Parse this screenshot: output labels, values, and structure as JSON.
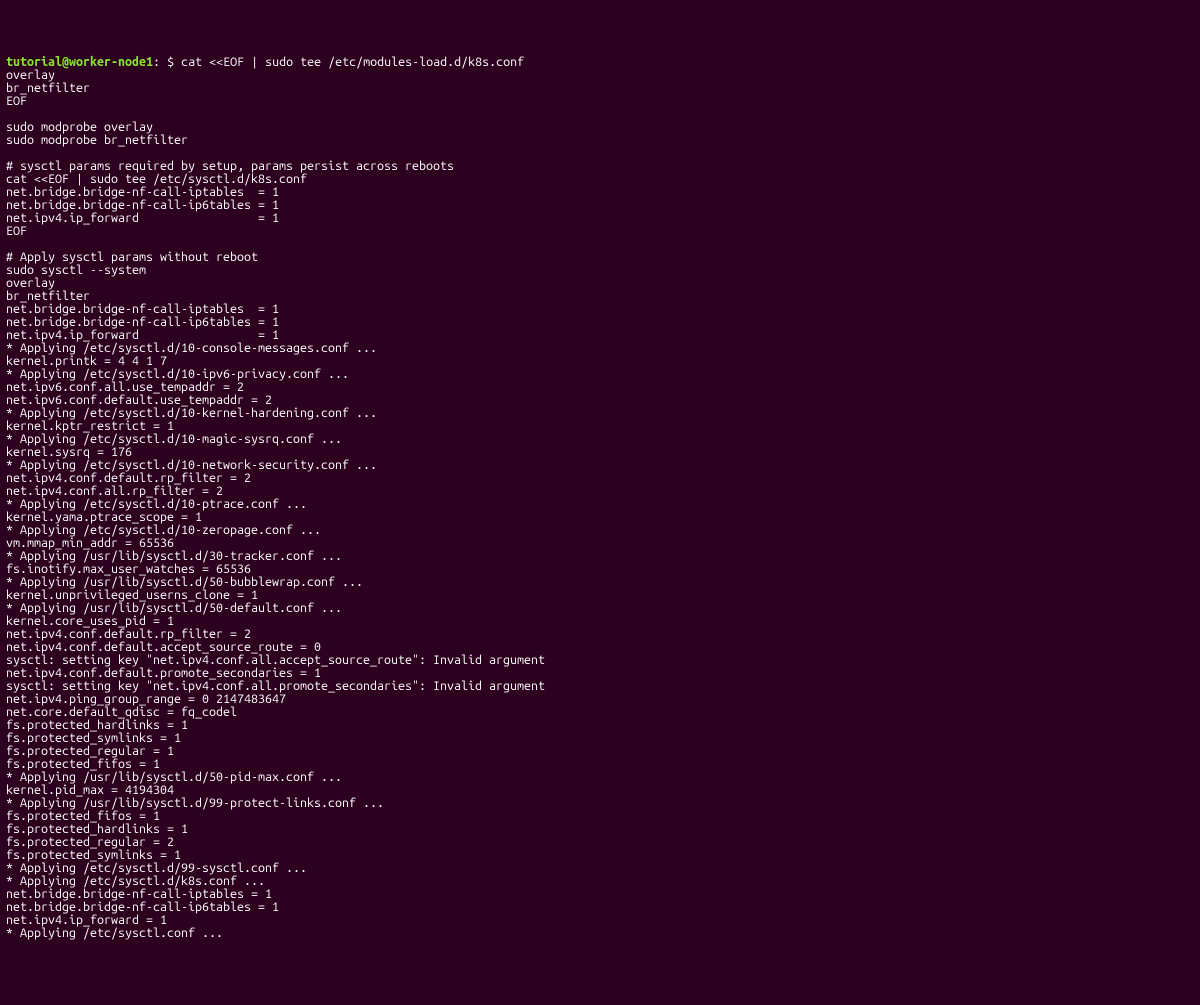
{
  "colors": {
    "background": "#2c001e",
    "text": "#ffffff",
    "prompt_user_host": "#8ae234"
  },
  "prompt": {
    "user": "tutorial",
    "at": "@",
    "host": "worker-node1",
    "colon": ":",
    "path": " ",
    "dollar": "$ "
  },
  "command": "cat <<EOF | sudo tee /etc/modules-load.d/k8s.conf",
  "lines": [
    "overlay",
    "br_netfilter",
    "EOF",
    "",
    "sudo modprobe overlay",
    "sudo modprobe br_netfilter",
    "",
    "# sysctl params required by setup, params persist across reboots",
    "cat <<EOF | sudo tee /etc/sysctl.d/k8s.conf",
    "net.bridge.bridge-nf-call-iptables  = 1",
    "net.bridge.bridge-nf-call-ip6tables = 1",
    "net.ipv4.ip_forward                 = 1",
    "EOF",
    "",
    "# Apply sysctl params without reboot",
    "sudo sysctl --system",
    "overlay",
    "br_netfilter",
    "net.bridge.bridge-nf-call-iptables  = 1",
    "net.bridge.bridge-nf-call-ip6tables = 1",
    "net.ipv4.ip_forward                 = 1",
    "* Applying /etc/sysctl.d/10-console-messages.conf ...",
    "kernel.printk = 4 4 1 7",
    "* Applying /etc/sysctl.d/10-ipv6-privacy.conf ...",
    "net.ipv6.conf.all.use_tempaddr = 2",
    "net.ipv6.conf.default.use_tempaddr = 2",
    "* Applying /etc/sysctl.d/10-kernel-hardening.conf ...",
    "kernel.kptr_restrict = 1",
    "* Applying /etc/sysctl.d/10-magic-sysrq.conf ...",
    "kernel.sysrq = 176",
    "* Applying /etc/sysctl.d/10-network-security.conf ...",
    "net.ipv4.conf.default.rp_filter = 2",
    "net.ipv4.conf.all.rp_filter = 2",
    "* Applying /etc/sysctl.d/10-ptrace.conf ...",
    "kernel.yama.ptrace_scope = 1",
    "* Applying /etc/sysctl.d/10-zeropage.conf ...",
    "vm.mmap_min_addr = 65536",
    "* Applying /usr/lib/sysctl.d/30-tracker.conf ...",
    "fs.inotify.max_user_watches = 65536",
    "* Applying /usr/lib/sysctl.d/50-bubblewrap.conf ...",
    "kernel.unprivileged_userns_clone = 1",
    "* Applying /usr/lib/sysctl.d/50-default.conf ...",
    "kernel.core_uses_pid = 1",
    "net.ipv4.conf.default.rp_filter = 2",
    "net.ipv4.conf.default.accept_source_route = 0",
    "sysctl: setting key \"net.ipv4.conf.all.accept_source_route\": Invalid argument",
    "net.ipv4.conf.default.promote_secondaries = 1",
    "sysctl: setting key \"net.ipv4.conf.all.promote_secondaries\": Invalid argument",
    "net.ipv4.ping_group_range = 0 2147483647",
    "net.core.default_qdisc = fq_codel",
    "fs.protected_hardlinks = 1",
    "fs.protected_symlinks = 1",
    "fs.protected_regular = 1",
    "fs.protected_fifos = 1",
    "* Applying /usr/lib/sysctl.d/50-pid-max.conf ...",
    "kernel.pid_max = 4194304",
    "* Applying /usr/lib/sysctl.d/99-protect-links.conf ...",
    "fs.protected_fifos = 1",
    "fs.protected_hardlinks = 1",
    "fs.protected_regular = 2",
    "fs.protected_symlinks = 1",
    "* Applying /etc/sysctl.d/99-sysctl.conf ...",
    "* Applying /etc/sysctl.d/k8s.conf ...",
    "net.bridge.bridge-nf-call-iptables = 1",
    "net.bridge.bridge-nf-call-ip6tables = 1",
    "net.ipv4.ip_forward = 1",
    "* Applying /etc/sysctl.conf ..."
  ]
}
